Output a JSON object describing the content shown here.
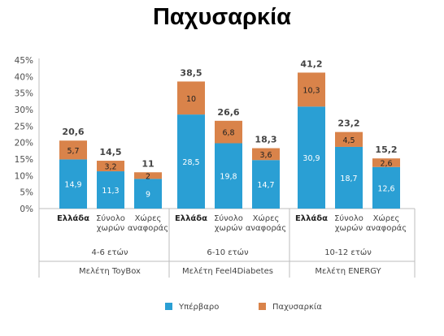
{
  "chart_data": {
    "type": "bar",
    "stacked": true,
    "title": "Παχυσαρκία",
    "ylim": [
      0,
      45
    ],
    "y_ticks": [
      "0%",
      "5%",
      "10%",
      "15%",
      "20%",
      "25%",
      "30%",
      "35%",
      "40%",
      "45%"
    ],
    "colors": {
      "Υπέρβαρο": "#2a9fd4",
      "Παχυσαρκία": "#d9834a"
    },
    "legend_position": "bottom-center",
    "grid": false,
    "groups": [
      {
        "age_label": "4-6 ετών",
        "study_label": "Μελέτη ToyBox",
        "categories": [
          {
            "label": [
              "Ελλάδα"
            ],
            "bold": true,
            "overweight": 14.9,
            "obesity": 5.7,
            "total": "20,6"
          },
          {
            "label": [
              "Σύνολο",
              "χωρών"
            ],
            "bold": false,
            "overweight": 11.3,
            "obesity": 3.2,
            "total": "14,5"
          },
          {
            "label": [
              "Χώρες",
              "αναφοράς"
            ],
            "bold": false,
            "overweight": 9,
            "obesity": 2,
            "total": "11"
          }
        ]
      },
      {
        "age_label": "6-10 ετών",
        "study_label": "Μελέτη Feel4Diabetes",
        "categories": [
          {
            "label": [
              "Ελλάδα"
            ],
            "bold": true,
            "overweight": 28.5,
            "obesity": 10,
            "total": "38,5"
          },
          {
            "label": [
              "Σύνολο",
              "χωρών"
            ],
            "bold": false,
            "overweight": 19.8,
            "obesity": 6.8,
            "total": "26,6"
          },
          {
            "label": [
              "Χώρες",
              "αναφοράς"
            ],
            "bold": false,
            "overweight": 14.7,
            "obesity": 3.6,
            "total": "18,3"
          }
        ]
      },
      {
        "age_label": "10-12 ετών",
        "study_label": "Μελέτη ENERGY",
        "categories": [
          {
            "label": [
              "Ελλάδα"
            ],
            "bold": true,
            "overweight": 30.9,
            "obesity": 10.3,
            "total": "41,2"
          },
          {
            "label": [
              "Σύνολο",
              "χωρών"
            ],
            "bold": false,
            "overweight": 18.7,
            "obesity": 4.5,
            "total": "23,2"
          },
          {
            "label": [
              "Χώρες",
              "αναφοράς"
            ],
            "bold": false,
            "overweight": 12.6,
            "obesity": 2.6,
            "total": "15,2"
          }
        ]
      }
    ],
    "series": [
      {
        "name": "Υπέρβαρο",
        "key": "overweight"
      },
      {
        "name": "Παχυσαρκία",
        "key": "obesity"
      }
    ]
  }
}
